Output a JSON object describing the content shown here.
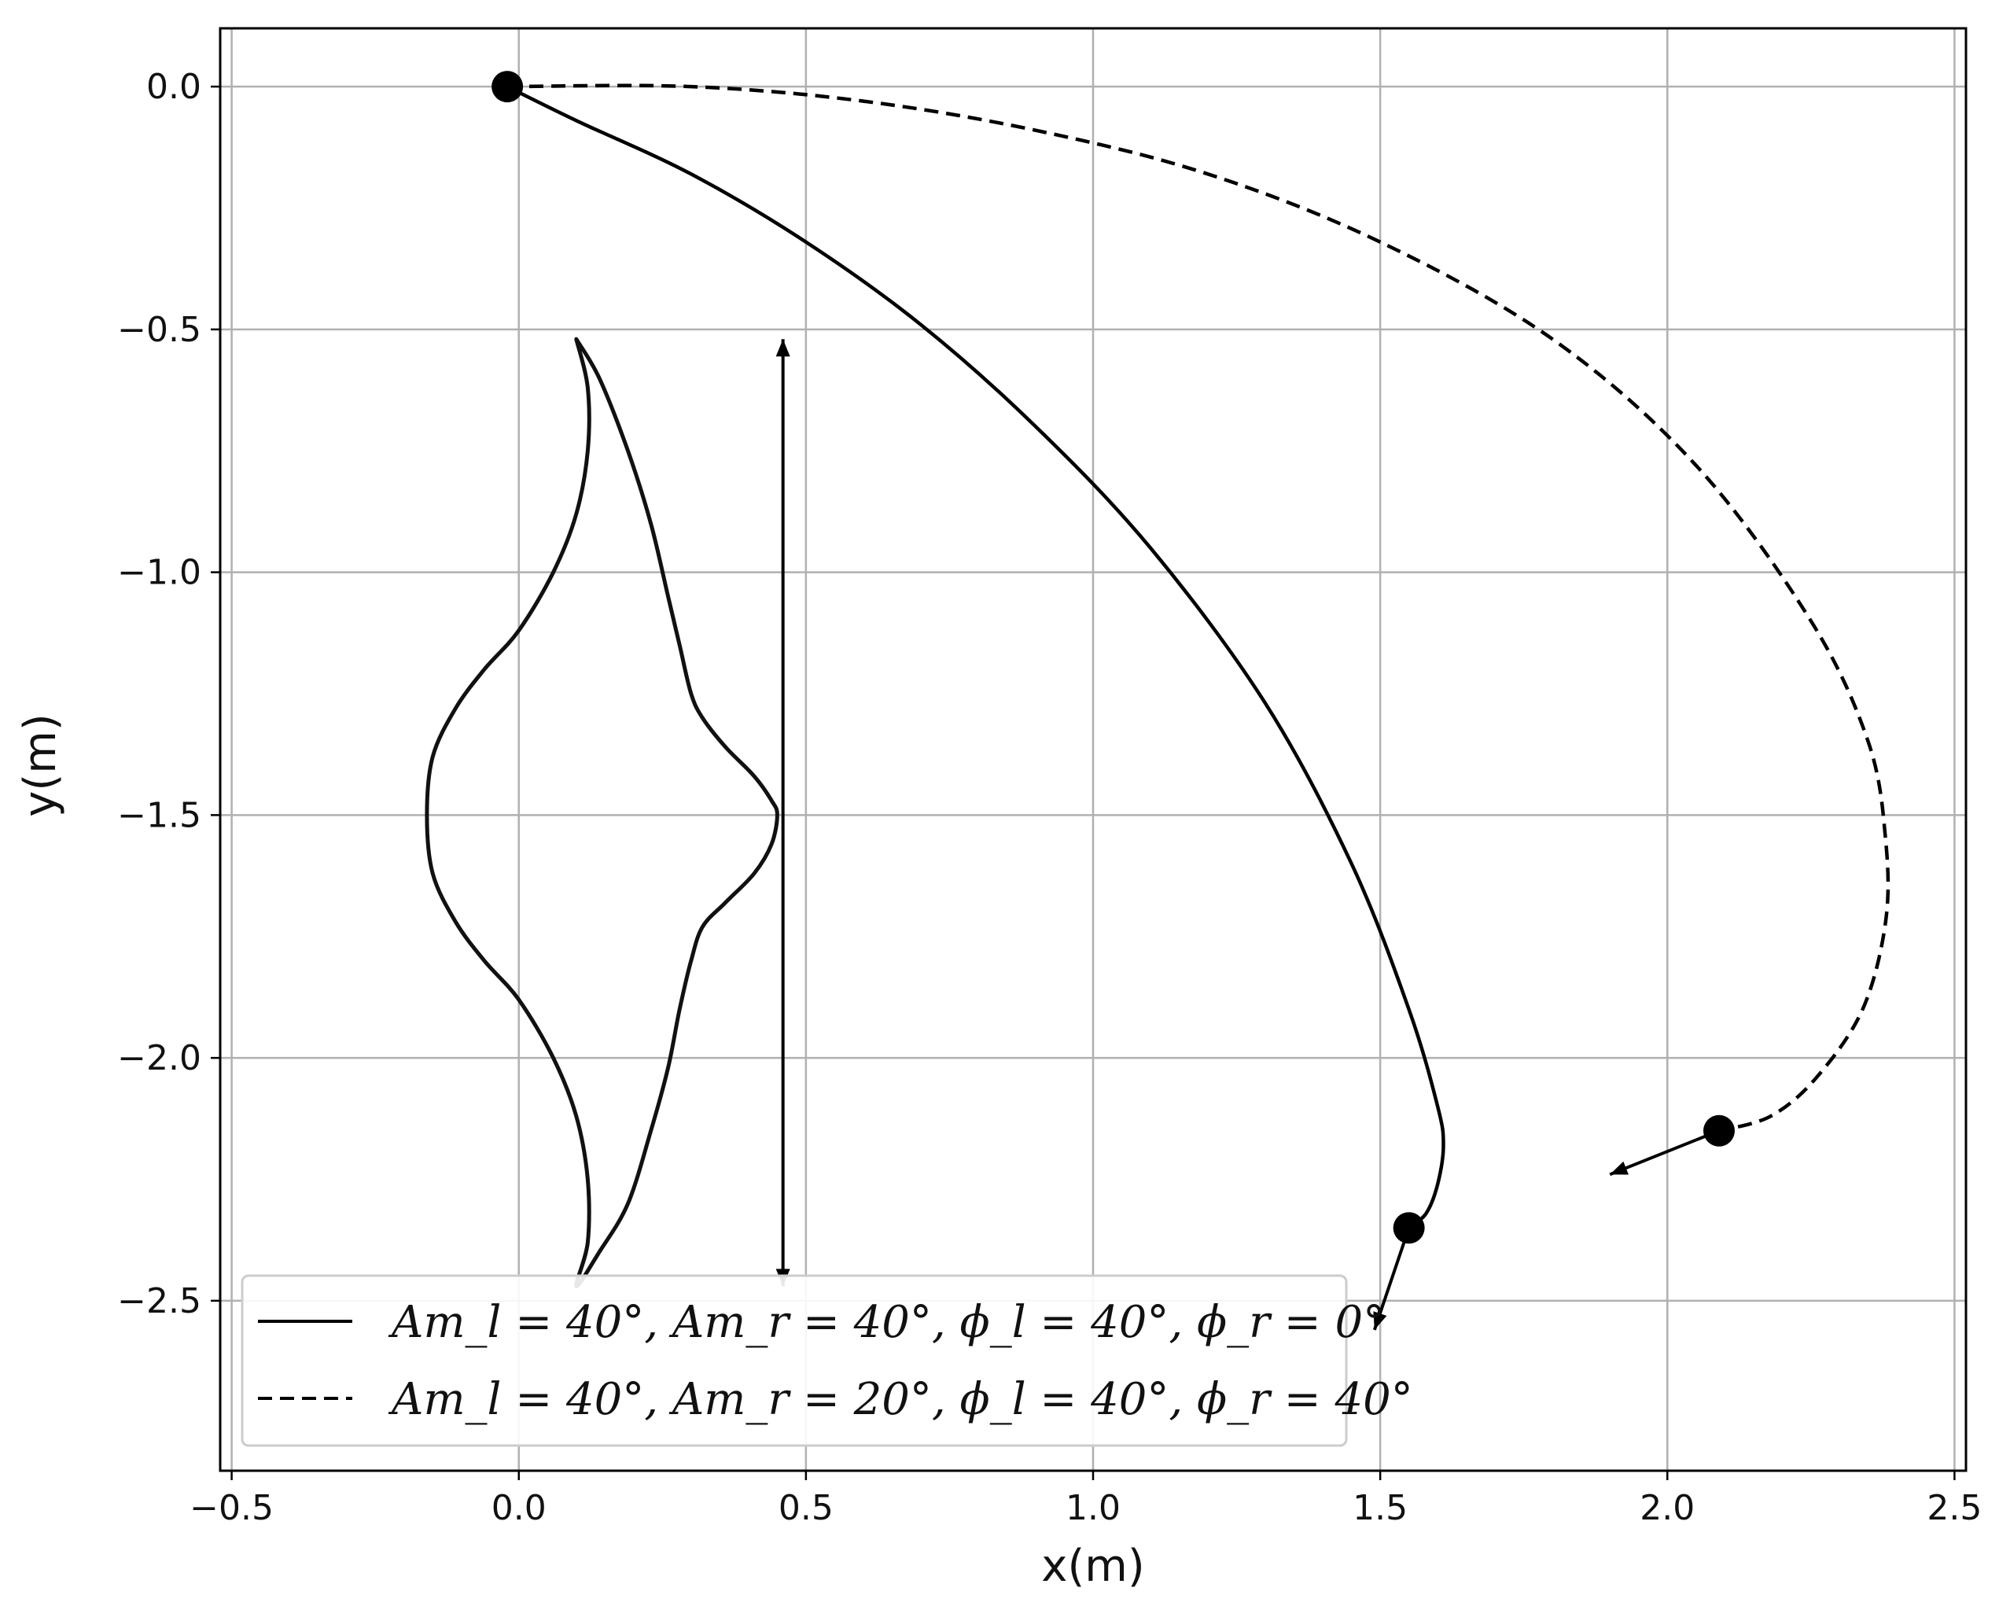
{
  "chart_data": {
    "type": "line",
    "title": "",
    "xlabel": "x(m)",
    "ylabel": "y(m)",
    "xlim": [
      -0.52,
      2.52
    ],
    "ylim": [
      -2.85,
      0.12
    ],
    "xticks": [
      -0.5,
      0.0,
      0.5,
      1.0,
      1.5,
      2.0,
      2.5
    ],
    "xtick_labels": [
      "−0.5",
      "0.0",
      "0.5",
      "1.0",
      "1.5",
      "2.0",
      "2.5"
    ],
    "yticks": [
      0.0,
      -0.5,
      -1.0,
      -1.5,
      -2.0,
      -2.5
    ],
    "ytick_labels": [
      "0.0",
      "−0.5",
      "−1.0",
      "−1.5",
      "−2.0",
      "−2.5"
    ],
    "grid": true,
    "legend_position": "lower-left",
    "series": [
      {
        "name": "Am_l=40°, Am_r=40°, ϕ_l=40°, ϕ_r=0°",
        "legend": "Am_l = 40°, Am_r = 40°, ϕ_l = 40°, ϕ_r = 0°",
        "linestyle": "solid",
        "color": "#000000",
        "x": [
          -0.02,
          0.1,
          0.3,
          0.5,
          0.7,
          0.9,
          1.1,
          1.3,
          1.45,
          1.55,
          1.6,
          1.61,
          1.6,
          1.58,
          1.55
        ],
        "y": [
          0.0,
          -0.07,
          -0.18,
          -0.32,
          -0.49,
          -0.7,
          -0.95,
          -1.27,
          -1.6,
          -1.9,
          -2.1,
          -2.18,
          -2.26,
          -2.32,
          -2.35
        ],
        "end_point": [
          1.55,
          -2.35
        ],
        "end_arrow_to": [
          1.49,
          -2.56
        ]
      },
      {
        "name": "Am_l=40°, Am_r=20°, ϕ_l=40°, ϕ_r=40°",
        "legend": "Am_l = 40°, Am_r = 20°, ϕ_l = 40°, ϕ_r = 40°",
        "linestyle": "dashed",
        "color": "#000000",
        "x": [
          -0.02,
          0.3,
          0.6,
          0.9,
          1.2,
          1.5,
          1.8,
          2.05,
          2.25,
          2.35,
          2.38,
          2.38,
          2.34,
          2.26,
          2.18,
          2.09
        ],
        "y": [
          0.0,
          0.0,
          -0.03,
          -0.09,
          -0.18,
          -0.32,
          -0.52,
          -0.78,
          -1.1,
          -1.35,
          -1.55,
          -1.72,
          -1.9,
          -2.04,
          -2.12,
          -2.15
        ],
        "end_point": [
          2.09,
          -2.15
        ],
        "end_arrow_to": [
          1.9,
          -2.24
        ]
      }
    ],
    "start_point": [
      -0.02,
      0.0
    ],
    "vertical_arrow": {
      "x": 0.46,
      "y_top": -0.52,
      "y_bottom": -2.47
    },
    "body_outline": {
      "x": [
        0.1,
        0.14,
        0.19,
        0.23,
        0.26,
        0.28,
        0.3,
        0.32,
        0.36,
        0.41,
        0.44,
        0.45,
        0.44,
        0.41,
        0.36,
        0.32,
        0.3,
        0.28,
        0.26,
        0.23,
        0.19,
        0.14,
        0.1,
        0.12,
        0.12,
        0.1,
        0.06,
        0.0,
        -0.06,
        -0.11,
        -0.15,
        -0.16,
        -0.15,
        -0.11,
        -0.06,
        0.0,
        0.06,
        0.1,
        0.12,
        0.12,
        0.1
      ],
      "y": [
        -0.52,
        -0.6,
        -0.75,
        -0.9,
        -1.05,
        -1.15,
        -1.25,
        -1.3,
        -1.36,
        -1.42,
        -1.47,
        -1.5,
        -1.56,
        -1.62,
        -1.68,
        -1.73,
        -1.8,
        -1.9,
        -2.02,
        -2.15,
        -2.3,
        -2.4,
        -2.47,
        -2.38,
        -2.25,
        -2.12,
        -2.0,
        -1.88,
        -1.8,
        -1.72,
        -1.62,
        -1.5,
        -1.38,
        -1.28,
        -1.2,
        -1.12,
        -1.0,
        -0.88,
        -0.75,
        -0.62,
        -0.52
      ]
    }
  }
}
